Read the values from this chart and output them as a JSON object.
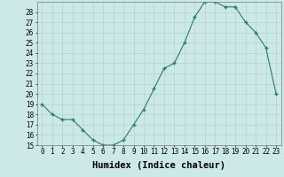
{
  "x": [
    0,
    1,
    2,
    3,
    4,
    5,
    6,
    7,
    8,
    9,
    10,
    11,
    12,
    13,
    14,
    15,
    16,
    17,
    18,
    19,
    20,
    21,
    22,
    23
  ],
  "y": [
    19,
    18,
    17.5,
    17.5,
    16.5,
    15.5,
    15,
    15,
    15.5,
    17,
    18.5,
    20.5,
    22.5,
    23,
    25,
    27.5,
    29,
    29,
    28.5,
    28.5,
    27,
    26,
    24.5,
    20
  ],
  "xlabel": "Humidex (Indice chaleur)",
  "ylim": [
    15,
    29
  ],
  "xlim": [
    -0.5,
    23.5
  ],
  "yticks": [
    15,
    16,
    17,
    18,
    19,
    20,
    21,
    22,
    23,
    24,
    25,
    26,
    27,
    28
  ],
  "xticks": [
    0,
    1,
    2,
    3,
    4,
    5,
    6,
    7,
    8,
    9,
    10,
    11,
    12,
    13,
    14,
    15,
    16,
    17,
    18,
    19,
    20,
    21,
    22,
    23
  ],
  "line_color": "#2d7a6e",
  "bg_color": "#cce8e8",
  "grid_color": "#b0cece",
  "tick_fontsize": 5.5,
  "xlabel_fontsize": 7.5
}
